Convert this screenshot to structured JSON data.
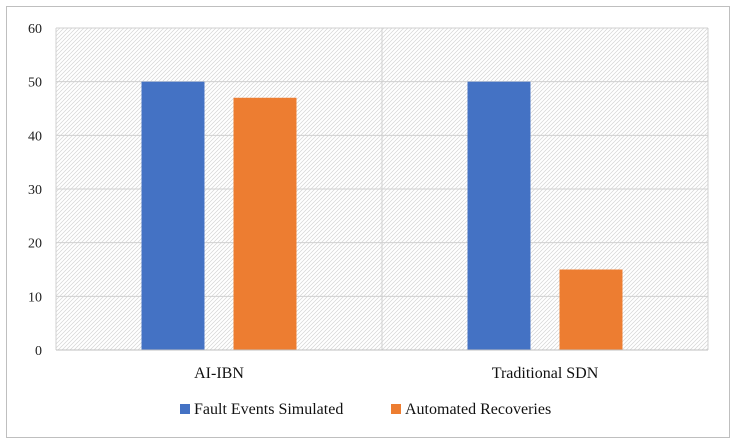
{
  "chart_data": {
    "type": "bar",
    "categories": [
      "AI-IBN",
      "Traditional SDN"
    ],
    "series": [
      {
        "name": "Fault Events Simulated",
        "values": [
          50,
          50
        ],
        "color": "#4472c4"
      },
      {
        "name": "Automated Recoveries",
        "values": [
          47,
          15
        ],
        "color": "#ed7d31"
      }
    ],
    "ylim": [
      0,
      60
    ],
    "yticks": [
      0,
      10,
      20,
      30,
      40,
      50,
      60
    ],
    "grid": true,
    "legend": "bottom"
  }
}
